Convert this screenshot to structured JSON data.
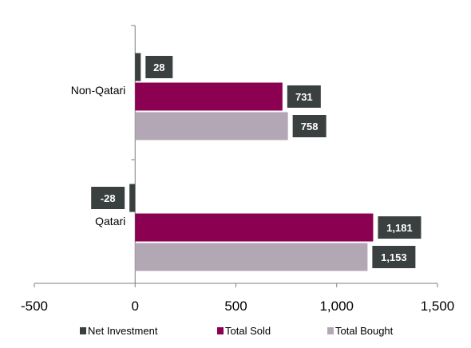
{
  "chart_data": {
    "type": "bar",
    "orientation": "horizontal",
    "categories": [
      "Non-Qatari",
      "Qatari"
    ],
    "series": [
      {
        "name": "Net Investment",
        "color": "#3a4040",
        "values": [
          28,
          -28
        ],
        "labels": [
          "28",
          "-28"
        ]
      },
      {
        "name": "Total Sold",
        "color": "#8b0050",
        "values": [
          731,
          1181
        ],
        "labels": [
          "731",
          "1,181"
        ]
      },
      {
        "name": "Total Bought",
        "color": "#b4a7b5",
        "values": [
          758,
          1153
        ],
        "labels": [
          "758",
          "1,153"
        ]
      }
    ],
    "xlim": [
      -500,
      1500
    ],
    "xticks": [
      -500,
      0,
      500,
      1000,
      1500
    ],
    "xtick_labels": [
      "-500",
      "0",
      "500",
      "1,000",
      "1,500"
    ],
    "label_box_color": "#3a4040",
    "legend_position": "bottom",
    "grid": false
  }
}
